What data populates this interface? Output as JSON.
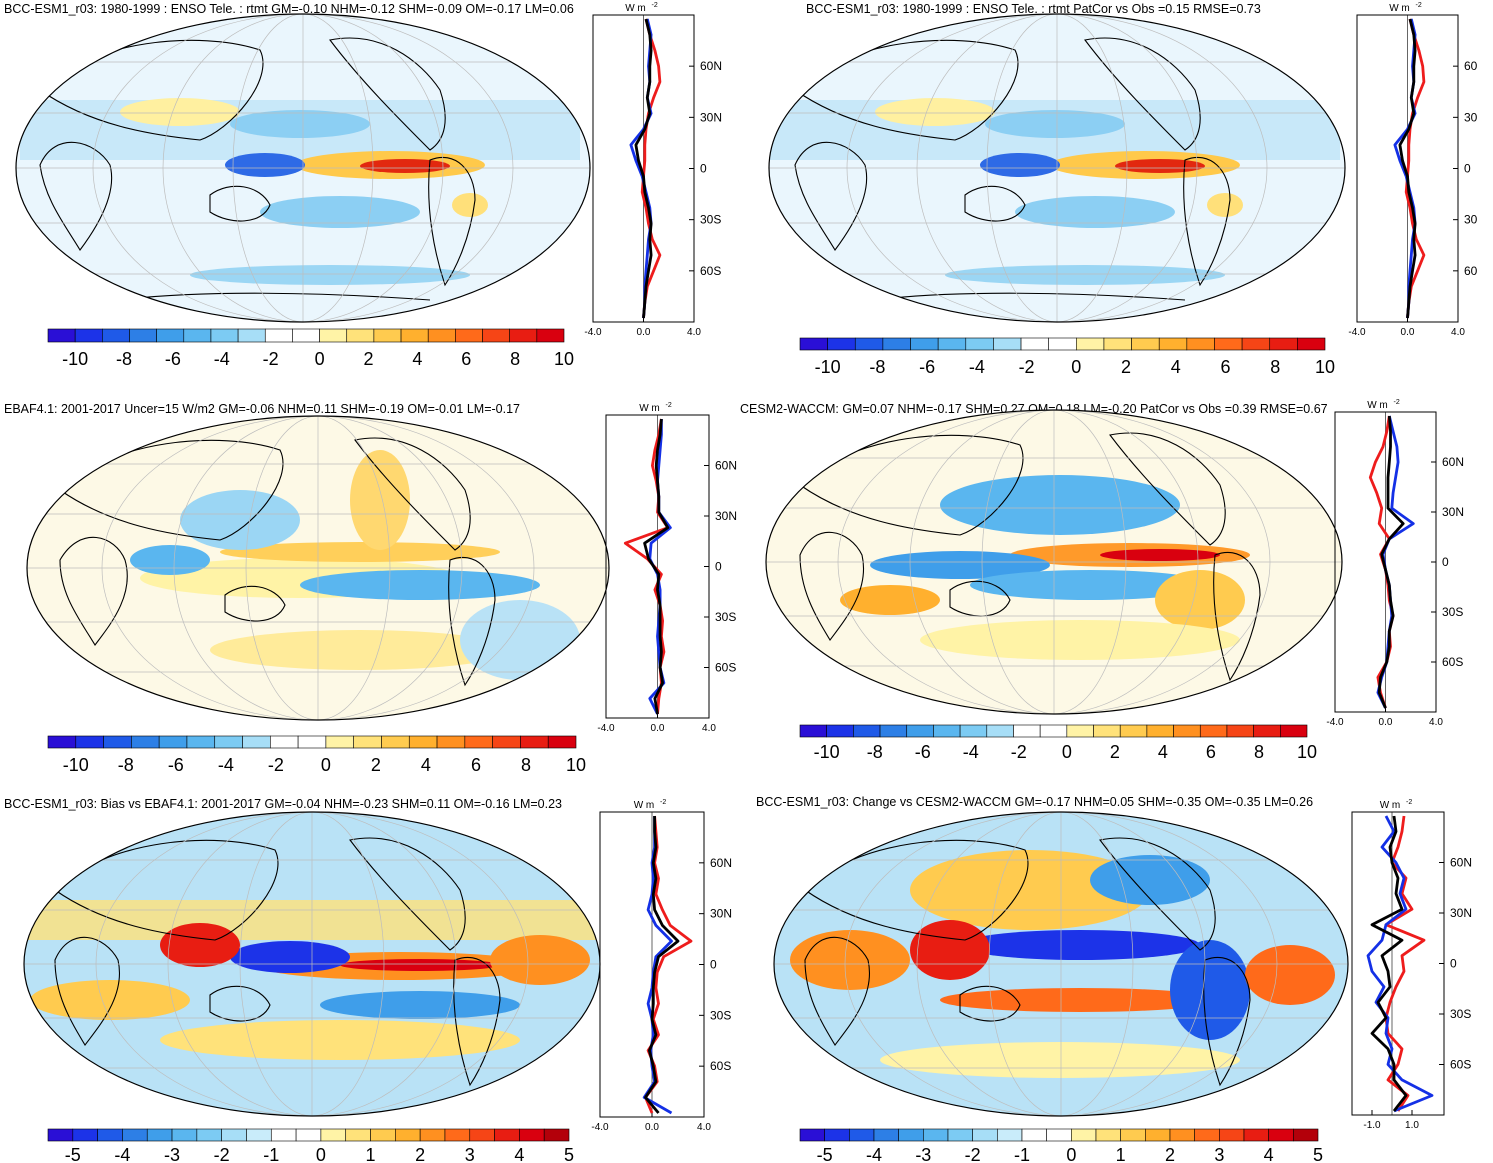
{
  "palette": {
    "div10": [
      "#2a0fd6",
      "#1c33e8",
      "#1f5ae8",
      "#2d7fe6",
      "#3f9eea",
      "#5ab6ef",
      "#7ccbf3",
      "#a7def7",
      "#ffffff",
      "#ffffff",
      "#fff3a6",
      "#ffe27a",
      "#ffcb4f",
      "#ffb02e",
      "#ff9020",
      "#ff6a1a",
      "#f64516",
      "#e81d12",
      "#d9000f"
    ],
    "div5": [
      "#2a0fd6",
      "#1c33e8",
      "#1f5ae8",
      "#2d7fe6",
      "#3f9eea",
      "#5ab6ef",
      "#7ccbf3",
      "#a7def7",
      "#c9ecfa",
      "#ffffff",
      "#ffffff",
      "#fff3a6",
      "#ffe27a",
      "#ffcb4f",
      "#ffb02e",
      "#ff9020",
      "#ff6a1a",
      "#f64516",
      "#e81d12",
      "#d9000f",
      "#b3000a"
    ],
    "line_red": "#ee1c1c",
    "line_blue": "#1430e6",
    "line_black": "#000000"
  },
  "unit_label": "W m",
  "unit_sup": "-2",
  "chart_data": [
    {
      "id": "p1",
      "type": "heatmap",
      "title": "BCC-ESM1_r03: 1980-1999 : ENSO Tele. : rtmt GM=-0.10 NHM=-0.12 SHM=-0.09 OM=-0.17 LM=0.06",
      "colorbar": {
        "palette": "div10",
        "ticks": [
          "-10",
          "-8",
          "-6",
          "-4",
          "-2",
          "0",
          "2",
          "4",
          "6",
          "8",
          "10"
        ]
      },
      "profile": {
        "xlim": [
          -4,
          4
        ],
        "xticks": [
          "-4.0",
          "0.0",
          "4.0"
        ],
        "ylabels": [
          "60N",
          "30N",
          "0",
          "30S",
          "60S"
        ],
        "series": [
          {
            "name": "red",
            "color": "line_red",
            "x": [
              0.2,
              0.5,
              0.9,
              1.2,
              1.3,
              0.8,
              0.4,
              0.2,
              0.1,
              0.1,
              0.0,
              -0.1,
              0.2,
              0.4,
              0.7,
              1.3,
              0.8,
              0.3,
              0.1,
              0.0
            ]
          },
          {
            "name": "blue",
            "color": "line_blue",
            "x": [
              0.3,
              0.6,
              0.5,
              0.4,
              0.5,
              0.3,
              0.6,
              0.0,
              -1.0,
              -0.6,
              -0.1,
              0.2,
              0.5,
              0.6,
              0.4,
              0.3,
              0.2,
              0.1,
              0.1,
              0.0
            ]
          },
          {
            "name": "black",
            "color": "line_black",
            "x": [
              0.2,
              0.5,
              0.6,
              0.5,
              0.5,
              0.3,
              0.5,
              0.1,
              -0.6,
              -0.4,
              0.0,
              0.1,
              0.4,
              0.6,
              0.5,
              0.6,
              0.4,
              0.2,
              0.1,
              0.0
            ]
          }
        ]
      }
    },
    {
      "id": "p2",
      "type": "heatmap",
      "title": "BCC-ESM1_r03: 1980-1999 : ENSO Tele. : rtmt PatCor vs Obs =0.15 RMSE=0.73",
      "colorbar": {
        "palette": "div10",
        "ticks": [
          "-10",
          "-8",
          "-6",
          "-4",
          "-2",
          "0",
          "2",
          "4",
          "6",
          "8",
          "10"
        ]
      },
      "profile": {
        "xlim": [
          -4,
          4
        ],
        "xticks": [
          "-4.0",
          "0.0",
          "4.0"
        ],
        "ylabels": [
          "60",
          "30",
          "0",
          "30",
          "60"
        ],
        "series": [
          {
            "name": "red",
            "color": "line_red",
            "x": [
              0.2,
              0.5,
              0.9,
              1.2,
              1.3,
              0.8,
              0.4,
              0.2,
              0.1,
              0.1,
              0.0,
              -0.1,
              0.2,
              0.4,
              0.7,
              1.3,
              0.8,
              0.3,
              0.1,
              0.0
            ]
          },
          {
            "name": "blue",
            "color": "line_blue",
            "x": [
              0.3,
              0.6,
              0.5,
              0.4,
              0.5,
              0.3,
              0.6,
              0.0,
              -1.0,
              -0.6,
              -0.1,
              0.2,
              0.5,
              0.6,
              0.4,
              0.3,
              0.2,
              0.1,
              0.1,
              0.0
            ]
          },
          {
            "name": "black",
            "color": "line_black",
            "x": [
              0.2,
              0.5,
              0.6,
              0.5,
              0.5,
              0.3,
              0.5,
              0.1,
              -0.6,
              -0.4,
              0.0,
              0.1,
              0.4,
              0.6,
              0.5,
              0.6,
              0.4,
              0.2,
              0.1,
              0.0
            ]
          }
        ]
      }
    },
    {
      "id": "p3",
      "type": "heatmap",
      "title": "EBAF4.1: 2001-2017 Uncer=15 W/m2 GM=-0.06 NHM=0.11 SHM=-0.19 OM=-0.01 LM=-0.17",
      "colorbar": {
        "palette": "div10",
        "ticks": [
          "-10",
          "-8",
          "-6",
          "-4",
          "-2",
          "0",
          "2",
          "4",
          "6",
          "8",
          "10"
        ]
      },
      "profile": {
        "xlim": [
          -4,
          4
        ],
        "xticks": [
          "-4.0",
          "0.0",
          "4.0"
        ],
        "ylabels": [
          "60N",
          "30N",
          "0",
          "30S",
          "60S"
        ],
        "series": [
          {
            "name": "red",
            "color": "line_red",
            "x": [
              0.3,
              0.1,
              -0.2,
              -0.4,
              -0.1,
              0.1,
              0.0,
              0.8,
              -2.5,
              -0.8,
              0.3,
              -0.2,
              0.2,
              0.4,
              0.3,
              0.5,
              0.2,
              0.3,
              0.1,
              0.0
            ]
          },
          {
            "name": "blue",
            "color": "line_blue",
            "x": [
              0.3,
              0.3,
              0.2,
              0.1,
              0.0,
              0.1,
              0.1,
              1.0,
              -0.5,
              -0.6,
              0.0,
              0.2,
              0.2,
              0.1,
              0.0,
              0.1,
              0.2,
              0.5,
              -0.6,
              0.0
            ]
          },
          {
            "name": "black",
            "color": "line_black",
            "x": [
              0.3,
              0.2,
              0.0,
              -0.1,
              0.0,
              0.1,
              0.1,
              0.8,
              -1.0,
              -0.7,
              0.1,
              0.0,
              0.2,
              0.2,
              0.2,
              0.3,
              0.2,
              0.4,
              -0.2,
              0.0
            ]
          }
        ]
      }
    },
    {
      "id": "p4",
      "type": "heatmap",
      "title": "CESM2-WACCM: GM=0.07 NHM=-0.17 SHM=0.27 OM=0.18 LM=-0.20 PatCor vs Obs =0.39 RMSE=0.67",
      "colorbar": {
        "palette": "div10",
        "ticks": [
          "-10",
          "-8",
          "-6",
          "-4",
          "-2",
          "0",
          "2",
          "4",
          "6",
          "8",
          "10"
        ]
      },
      "profile": {
        "xlim": [
          -4,
          4
        ],
        "xticks": [
          "-4.0",
          "0.0",
          "4.0"
        ],
        "ylabels": [
          "60N",
          "30N",
          "0",
          "30S",
          "60S"
        ],
        "series": [
          {
            "name": "red",
            "color": "line_red",
            "x": [
              0.3,
              0.1,
              -0.2,
              -0.8,
              -1.2,
              -0.7,
              -0.3,
              -0.5,
              0.3,
              -0.4,
              0.0,
              0.2,
              0.3,
              0.6,
              0.3,
              0.4,
              0.1,
              -0.6,
              -0.4,
              0.0
            ]
          },
          {
            "name": "blue",
            "color": "line_blue",
            "x": [
              0.3,
              0.6,
              0.9,
              1.0,
              0.8,
              0.6,
              0.5,
              2.2,
              0.3,
              -0.2,
              0.0,
              0.3,
              0.4,
              0.5,
              0.3,
              0.2,
              0.1,
              -0.3,
              -0.6,
              0.0
            ]
          },
          {
            "name": "black",
            "color": "line_black",
            "x": [
              0.3,
              0.4,
              0.4,
              0.3,
              0.2,
              0.2,
              0.2,
              1.4,
              0.3,
              -0.3,
              0.0,
              0.3,
              0.4,
              0.6,
              0.3,
              0.3,
              0.1,
              -0.4,
              -0.5,
              0.0
            ]
          }
        ]
      }
    },
    {
      "id": "p5",
      "type": "heatmap",
      "title": "BCC-ESM1_r03: Bias vs EBAF4.1: 2001-2017 GM=-0.04 NHM=-0.23 SHM=0.11 OM=-0.16 LM=0.23",
      "colorbar": {
        "palette": "div5",
        "ticks": [
          "-5",
          "-4",
          "-3",
          "-2",
          "-1",
          "0",
          "1",
          "2",
          "3",
          "4",
          "5"
        ]
      },
      "profile": {
        "xlim": [
          -4,
          4
        ],
        "xticks": [
          "-4.0",
          "0.0",
          "4.0"
        ],
        "ylabels": [
          "60N",
          "30N",
          "0",
          "30S",
          "60S"
        ],
        "series": [
          {
            "name": "red",
            "color": "line_red",
            "x": [
              0.2,
              0.3,
              0.4,
              0.2,
              0.5,
              0.3,
              0.8,
              1.4,
              3.0,
              0.9,
              0.4,
              0.3,
              0.5,
              0.1,
              0.5,
              -0.3,
              0.2,
              0.4,
              -0.5,
              0.0
            ]
          },
          {
            "name": "blue",
            "color": "line_blue",
            "x": [
              0.2,
              0.2,
              0.2,
              0.0,
              0.1,
              0.0,
              -0.3,
              0.3,
              1.5,
              0.3,
              0.1,
              0.0,
              -0.3,
              0.0,
              0.1,
              -0.1,
              0.0,
              0.2,
              -0.6,
              1.5
            ]
          },
          {
            "name": "black",
            "color": "line_black",
            "x": [
              0.2,
              0.2,
              0.3,
              0.1,
              0.3,
              0.1,
              0.2,
              0.8,
              2.0,
              0.5,
              0.2,
              0.1,
              0.1,
              0.0,
              0.3,
              -0.2,
              0.1,
              0.3,
              -0.5,
              0.5
            ]
          }
        ]
      }
    },
    {
      "id": "p6",
      "type": "heatmap",
      "title": "BCC-ESM1_r03: Change vs CESM2-WACCM GM=-0.17 NHM=0.05 SHM=-0.35 OM=-0.35 LM=0.26",
      "colorbar": {
        "palette": "div5",
        "ticks": [
          "-5",
          "-4",
          "-3",
          "-2",
          "-1",
          "0",
          "1",
          "2",
          "3",
          "4",
          "5"
        ]
      },
      "profile": {
        "xlim": [
          -2,
          2.6
        ],
        "xticks": [
          "-1.0",
          "1.0"
        ],
        "ylabels": [
          "60N",
          "30N",
          "0",
          "30S",
          "60S"
        ],
        "series": [
          {
            "name": "red",
            "color": "line_red",
            "x": [
              0.6,
              0.5,
              0.3,
              0.0,
              0.7,
              0.5,
              1.0,
              -0.3,
              1.6,
              0.5,
              0.6,
              0.2,
              -0.1,
              -0.3,
              -0.2,
              0.5,
              0.3,
              -0.2,
              0.8,
              0.3
            ]
          },
          {
            "name": "blue",
            "color": "line_blue",
            "x": [
              -0.3,
              0.1,
              -0.5,
              0.2,
              0.6,
              0.4,
              0.7,
              -0.3,
              -0.5,
              -1.2,
              -1.0,
              -0.4,
              -0.8,
              -0.2,
              -0.3,
              0.0,
              -0.2,
              0.5,
              2.0,
              0.1
            ]
          },
          {
            "name": "black",
            "color": "line_black",
            "x": [
              0.1,
              0.2,
              -0.1,
              0.0,
              0.3,
              0.2,
              0.5,
              -1.0,
              0.5,
              -0.5,
              -0.2,
              -0.1,
              -0.7,
              -0.3,
              -1.0,
              -0.2,
              0.1,
              0.1,
              0.7,
              0.1
            ]
          }
        ]
      }
    }
  ]
}
